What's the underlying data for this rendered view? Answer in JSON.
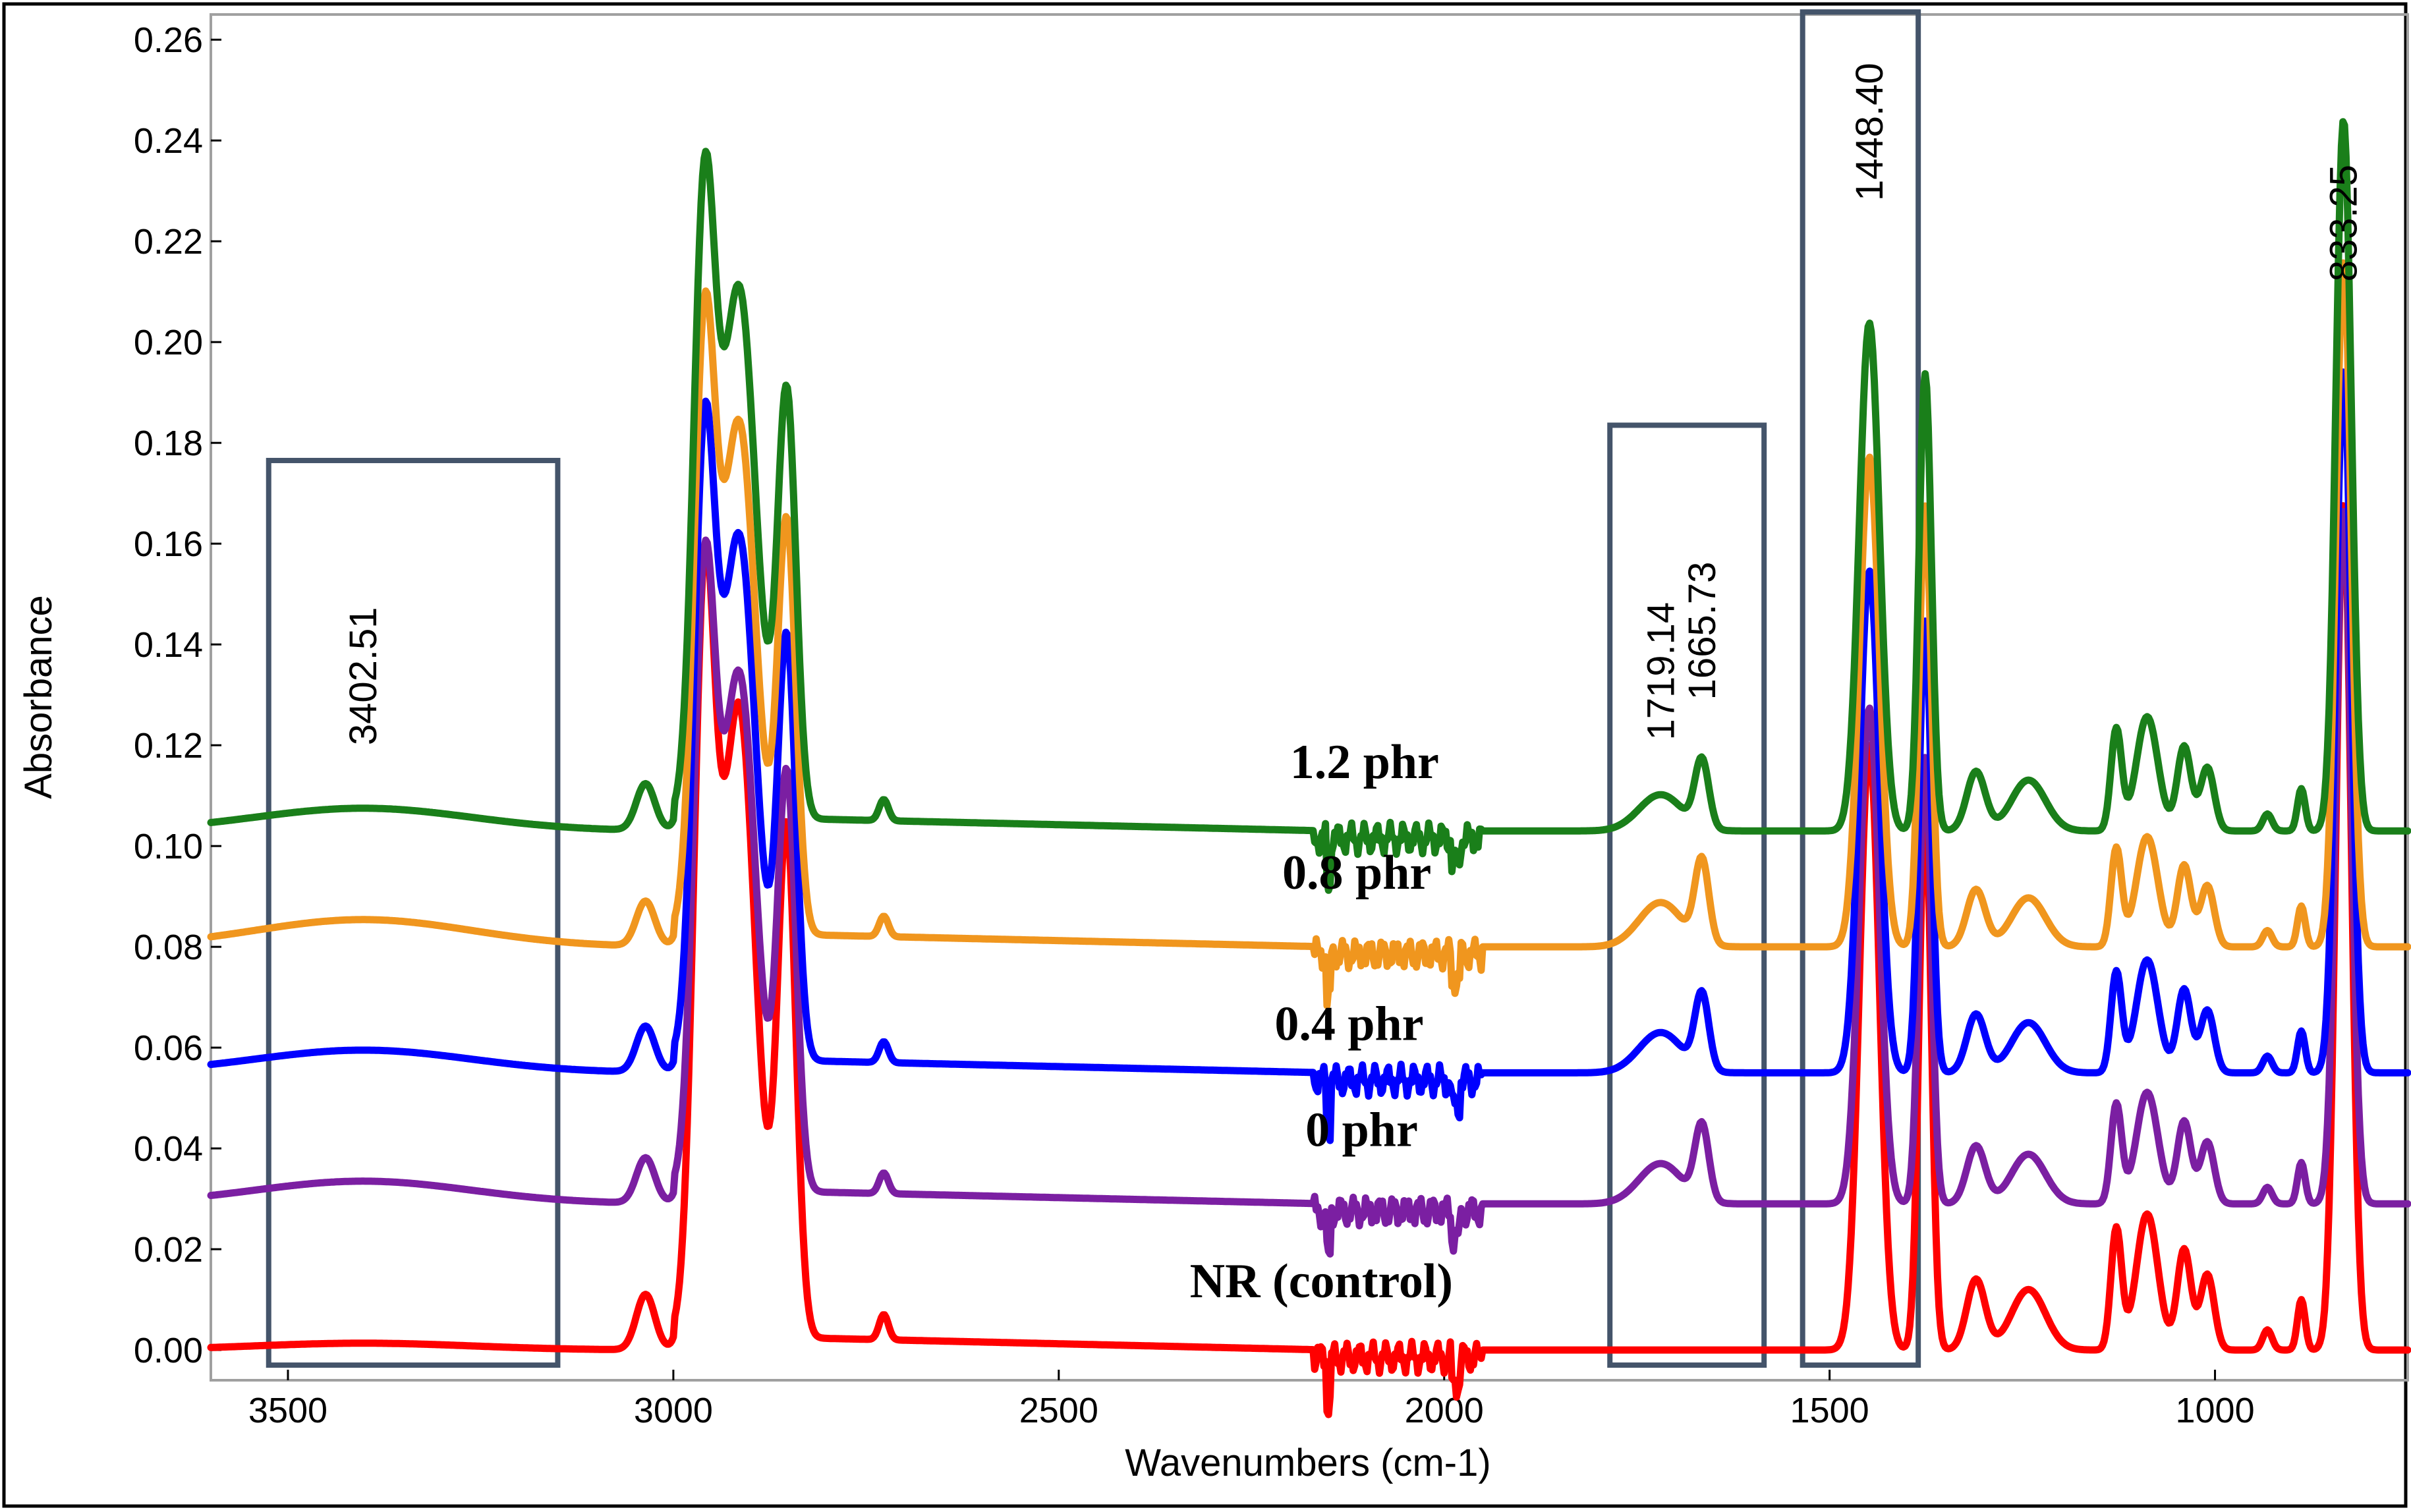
{
  "chart_data": {
    "type": "line",
    "title": "",
    "xlabel": "Wavenumbers (cm-1)",
    "ylabel": "Absorbance",
    "xlim": [
      3600,
      750
    ],
    "ylim": [
      -0.006,
      0.265
    ],
    "x_reversed": true,
    "grid": false,
    "x_ticks": [
      3500,
      3000,
      2500,
      2000,
      1500,
      1000
    ],
    "x_tick_labels": [
      "3500",
      "3000",
      "2500",
      "2000",
      "1500",
      "1000"
    ],
    "y_ticks": [
      0.0,
      0.02,
      0.04,
      0.06,
      0.08,
      0.1,
      0.12,
      0.14,
      0.16,
      0.18,
      0.2,
      0.22,
      0.24,
      0.26
    ],
    "y_tick_labels": [
      "0.00",
      "0.02",
      "0.04",
      "0.06",
      "0.08",
      "0.10",
      "0.12",
      "0.14",
      "0.16",
      "0.18",
      "0.20",
      "0.22",
      "0.24",
      "0.26"
    ],
    "peak_labels": [
      {
        "text": "3402.51",
        "x": 3402.51
      },
      {
        "text": "1719.14",
        "x": 1719.14
      },
      {
        "text": "1665.73",
        "x": 1665.73
      },
      {
        "text": "1448.40",
        "x": 1448.4
      },
      {
        "text": "833.25",
        "x": 833.25
      }
    ],
    "highlight_regions": [
      {
        "x_from": 3525,
        "x_to": 3150,
        "y_from": -0.003,
        "y_to": 0.1765
      },
      {
        "x_from": 1785,
        "x_to": 1585,
        "y_from": -0.003,
        "y_to": 0.1835
      },
      {
        "x_from": 1535,
        "x_to": 1385,
        "y_from": -0.003,
        "y_to": 0.2655
      }
    ],
    "series": [
      {
        "name": "NR (control)",
        "label": "NR (control)",
        "color": "#ff0000",
        "offset": 0.0,
        "label_x": 2330,
        "label_y": 0.0105,
        "n_scale": 1.0,
        "oh_scale": 0.3,
        "co_scale": 0.0
      },
      {
        "name": "0 phr",
        "label": "0 phr",
        "color": "#7b1fa2",
        "offset": 0.029,
        "label_x": 2180,
        "label_y": 0.0405,
        "n_scale": 0.82,
        "oh_scale": 1.0,
        "co_scale": 1.0
      },
      {
        "name": "0.4 phr",
        "label": "0.4 phr",
        "color": "#0000ff",
        "offset": 0.055,
        "label_x": 2220,
        "label_y": 0.0615,
        "n_scale": 0.83,
        "oh_scale": 1.0,
        "co_scale": 1.0
      },
      {
        "name": "0.8 phr",
        "label": "0.8 phr",
        "color": "#f0961e",
        "offset": 0.08,
        "label_x": 2210,
        "label_y": 0.0915,
        "n_scale": 0.81,
        "oh_scale": 1.2,
        "co_scale": 1.1
      },
      {
        "name": "1.2 phr",
        "label": "1.2 phr",
        "color": "#1a7f1a",
        "offset": 0.103,
        "label_x": 2200,
        "label_y": 0.1135,
        "n_scale": 0.84,
        "oh_scale": 1.0,
        "co_scale": 0.9
      }
    ],
    "base_spectrum_peaks": [
      {
        "x": 3036,
        "h": 0.011,
        "w": 12
      },
      {
        "x": 2960,
        "h": 0.14,
        "w": 14
      },
      {
        "x": 2915,
        "h": 0.125,
        "w": 22
      },
      {
        "x": 2853,
        "h": 0.1,
        "w": 12
      },
      {
        "x": 2727,
        "h": 0.005,
        "w": 6
      },
      {
        "x": 1448.4,
        "h": 0.12,
        "w": 13
      },
      {
        "x": 1376,
        "h": 0.108,
        "w": 8
      },
      {
        "x": 1310,
        "h": 0.014,
        "w": 12
      },
      {
        "x": 1242,
        "h": 0.012,
        "w": 22
      },
      {
        "x": 1128,
        "h": 0.024,
        "w": 7
      },
      {
        "x": 1088,
        "h": 0.027,
        "w": 14
      },
      {
        "x": 1040,
        "h": 0.02,
        "w": 9
      },
      {
        "x": 1010,
        "h": 0.015,
        "w": 9
      },
      {
        "x": 932,
        "h": 0.004,
        "w": 6
      },
      {
        "x": 888,
        "h": 0.01,
        "w": 5
      },
      {
        "x": 833.25,
        "h": 0.168,
        "w": 10
      }
    ],
    "oxidation_peaks": [
      {
        "x": 3402.51,
        "h": 0.0045,
        "w": 140
      },
      {
        "x": 1719.14,
        "h": 0.008,
        "w": 28
      },
      {
        "x": 1665.73,
        "h": 0.015,
        "w": 9
      }
    ]
  }
}
